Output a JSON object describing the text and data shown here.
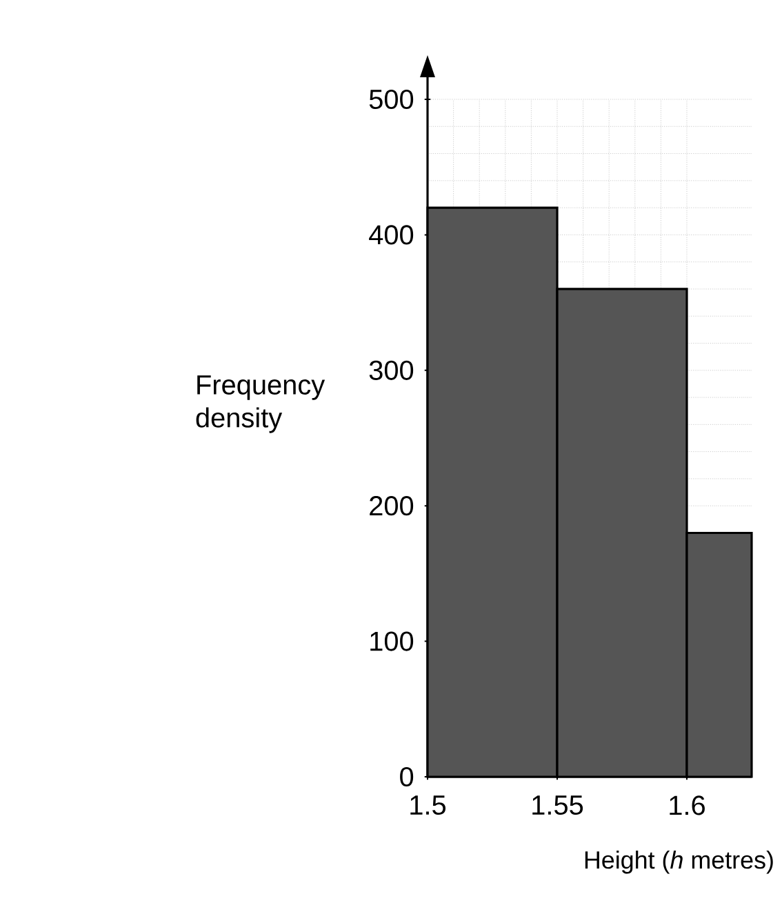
{
  "chart_data": {
    "type": "histogram",
    "xlabel": "Height (*h* metres)",
    "ylabel": "Frequency density",
    "bins": [
      1.5,
      1.55,
      1.6,
      1.625
    ],
    "values": [
      420,
      360,
      180
    ],
    "color": "#555555",
    "xlim": [
      1.5,
      1.625
    ],
    "ylim": [
      0,
      500
    ],
    "xticks": [
      1.5,
      1.55,
      1.6
    ],
    "yticks": [
      0,
      100,
      200,
      300,
      400,
      500
    ],
    "grid": true
  }
}
